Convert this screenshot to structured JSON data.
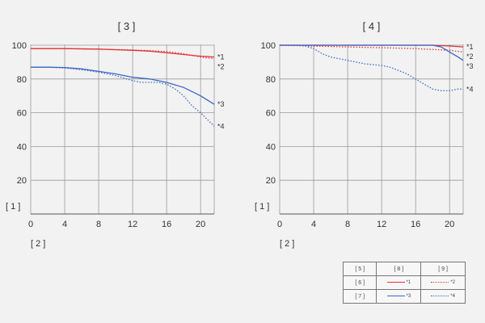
{
  "chart_data": [
    {
      "type": "line",
      "title": "[ 3 ]",
      "ylabel": "[ 1 ]",
      "xlabel": "[ 2 ]",
      "xlim": [
        0,
        21.6
      ],
      "ylim": [
        0,
        100
      ],
      "xticks": [
        0,
        4,
        8,
        12,
        16,
        20
      ],
      "yticks": [
        20,
        40,
        60,
        80,
        100
      ],
      "grid": true,
      "series": [
        {
          "name": "*1",
          "color": "#e03535",
          "style": "solid",
          "x": [
            0,
            4,
            8,
            12,
            14,
            16,
            18,
            20,
            21.6
          ],
          "y": [
            98,
            98,
            97.7,
            97,
            96.5,
            95.5,
            94.5,
            93.5,
            93
          ]
        },
        {
          "name": "*2",
          "color": "#e03535",
          "style": "dotted",
          "x": [
            0,
            4,
            8,
            12,
            14,
            16,
            18,
            20,
            21.6
          ],
          "y": [
            98,
            98,
            97.7,
            97.2,
            96.8,
            96.2,
            95,
            93,
            92
          ]
        },
        {
          "name": "*3",
          "color": "#3a66c4",
          "style": "solid",
          "x": [
            0,
            2,
            4,
            6,
            8,
            10,
            12,
            14,
            16,
            18,
            20,
            21.6
          ],
          "y": [
            87,
            87,
            86.8,
            86,
            84.5,
            83,
            81,
            80,
            78,
            75,
            70,
            65
          ]
        },
        {
          "name": "*4",
          "color": "#3a66c4",
          "style": "dotted",
          "x": [
            0,
            2,
            4,
            6,
            8,
            10,
            12,
            13,
            15,
            16,
            17,
            18,
            19,
            20,
            21,
            21.6
          ],
          "y": [
            87,
            87,
            86.5,
            85.5,
            84,
            82,
            79,
            78,
            78,
            77,
            74,
            70,
            64,
            60,
            55,
            52
          ]
        }
      ]
    },
    {
      "type": "line",
      "title": "[ 4 ]",
      "ylabel": "[ 1 ]",
      "xlabel": "[ 2 ]",
      "xlim": [
        0,
        21.6
      ],
      "ylim": [
        0,
        100
      ],
      "xticks": [
        0,
        4,
        8,
        12,
        16,
        20
      ],
      "yticks": [
        20,
        40,
        60,
        80,
        100
      ],
      "grid": true,
      "series": [
        {
          "name": "*1",
          "color": "#e03535",
          "style": "solid",
          "x": [
            0,
            4,
            8,
            12,
            16,
            18,
            20,
            21.6
          ],
          "y": [
            100,
            100,
            100,
            100,
            100,
            100,
            99.5,
            99
          ]
        },
        {
          "name": "*2",
          "color": "#e03535",
          "style": "dotted",
          "x": [
            0,
            4,
            8,
            12,
            16,
            20,
            21.6
          ],
          "y": [
            100,
            99.5,
            99,
            98.5,
            98,
            97,
            96
          ]
        },
        {
          "name": "*3",
          "color": "#3a66c4",
          "style": "solid",
          "x": [
            0,
            4,
            8,
            12,
            16,
            18,
            19,
            20,
            21,
            21.6
          ],
          "y": [
            100,
            100,
            100,
            100,
            100,
            100,
            99,
            96,
            93,
            91
          ]
        },
        {
          "name": "*4",
          "color": "#3a66c4",
          "style": "dotted",
          "x": [
            0,
            2,
            3,
            4,
            5,
            6,
            8,
            10,
            12,
            13,
            14,
            15,
            16,
            17,
            18,
            19,
            20,
            21,
            21.6
          ],
          "y": [
            100,
            100,
            99.5,
            98,
            95,
            93,
            91,
            89,
            88,
            87,
            85,
            83,
            80,
            77,
            74,
            73,
            73,
            74,
            74
          ]
        }
      ]
    }
  ],
  "legend": {
    "col_header_type": "[ 5 ]",
    "col_header_a": "[ 8 ]",
    "col_header_b": "[ 9 ]",
    "row1_label": "[ 6 ]",
    "row2_label": "[ 7 ]",
    "row1_a": "*1",
    "row1_b": "*2",
    "row2_a": "*3",
    "row2_b": "*4"
  }
}
